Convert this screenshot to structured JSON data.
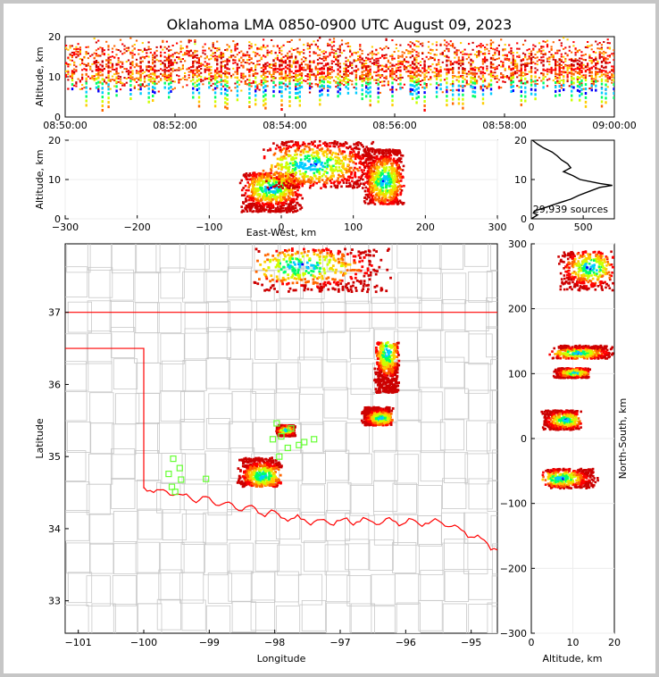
{
  "chart_data": [
    {
      "panel": "altitude-time",
      "type": "heatmap",
      "title": "Oklahoma LMA 0850-0900 UTC August 09, 2023",
      "ylabel": "Altitude, km",
      "xlabel": "",
      "x_ticks": [
        "08:50:00",
        "08:52:00",
        "08:54:00",
        "08:56:00",
        "08:58:00",
        "09:00:00"
      ],
      "xlim": [
        "08:50:00",
        "09:00:00"
      ],
      "ylim": [
        0,
        20
      ],
      "y_ticks": [
        "0",
        "10",
        "20"
      ],
      "band_altitude_km": [
        8,
        18
      ],
      "core_altitude_km": [
        2,
        12
      ]
    },
    {
      "panel": "altitude-eastwest",
      "type": "heatmap",
      "xlabel": "East-West, km",
      "ylabel": "Altitude, km",
      "xlim": [
        -300,
        300
      ],
      "ylim": [
        0,
        20
      ],
      "x_ticks": [
        "−300",
        "−200",
        "−100",
        "0",
        "100",
        "200",
        "300"
      ],
      "y_ticks": [
        "0",
        "10",
        "20"
      ],
      "clusters": [
        {
          "x": [
            -60,
            30
          ],
          "z": [
            2,
            12
          ],
          "core_x": -15,
          "core_z": 8
        },
        {
          "x": [
            -30,
            140
          ],
          "z": [
            8,
            20
          ],
          "core_x": 40,
          "core_z": 14
        },
        {
          "x": [
            110,
            170
          ],
          "z": [
            4,
            18
          ],
          "core_x": 142,
          "core_z": 10
        }
      ]
    },
    {
      "panel": "altitude-histogram",
      "type": "line",
      "xlim": [
        0,
        800
      ],
      "ylim": [
        0,
        20
      ],
      "x_ticks": [
        "0",
        "500"
      ],
      "y_ticks": [
        "0",
        "10",
        "20"
      ],
      "annotation": "29,939 sources",
      "altitude_km": [
        0,
        1,
        1.5,
        2,
        3,
        4,
        5,
        6,
        7,
        8,
        8.5,
        9,
        10,
        11,
        12,
        13,
        14,
        15,
        16,
        17,
        18,
        19,
        20
      ],
      "count": [
        0,
        60,
        20,
        30,
        150,
        260,
        380,
        460,
        560,
        660,
        780,
        660,
        470,
        400,
        310,
        380,
        350,
        290,
        250,
        200,
        120,
        60,
        10
      ]
    },
    {
      "panel": "plan-view",
      "type": "heatmap",
      "xlabel": "Longitude",
      "ylabel": "Latitude",
      "xlim": [
        -101.2,
        -94.6
      ],
      "ylim": [
        32.55,
        37.95
      ],
      "x_ticks": [
        "−101",
        "−100",
        "−99",
        "−98",
        "−97",
        "−96",
        "−95"
      ],
      "y_ticks": [
        "33",
        "34",
        "35",
        "36",
        "37"
      ],
      "clusters": [
        {
          "lon": [
            -98.4,
            -96.2
          ],
          "lat": [
            37.3,
            37.9
          ],
          "core_lon": -97.6,
          "core_lat": 37.65
        },
        {
          "lon": [
            -96.5,
            -96.1
          ],
          "lat": [
            35.9,
            36.6
          ],
          "core_lon": -96.3,
          "core_lat": 36.45
        },
        {
          "lon": [
            -96.7,
            -96.2
          ],
          "lat": [
            35.45,
            35.7
          ],
          "core_lon": -96.4,
          "core_lat": 35.55
        },
        {
          "lon": [
            -98.6,
            -97.9
          ],
          "lat": [
            34.6,
            35.0
          ],
          "core_lon": -98.2,
          "core_lat": 34.75
        },
        {
          "lon": [
            -98.0,
            -97.7
          ],
          "lat": [
            35.3,
            35.45
          ],
          "core_lon": -97.85,
          "core_lat": 35.38
        }
      ],
      "stations": [
        [
          -99.55,
          34.97
        ],
        [
          -99.45,
          34.84
        ],
        [
          -99.62,
          34.76
        ],
        [
          -99.43,
          34.68
        ],
        [
          -99.57,
          34.58
        ],
        [
          -99.52,
          34.51
        ],
        [
          -99.05,
          34.69
        ],
        [
          -98.03,
          35.24
        ],
        [
          -97.9,
          35.28
        ],
        [
          -97.8,
          35.12
        ],
        [
          -97.63,
          35.16
        ],
        [
          -97.55,
          35.2
        ],
        [
          -97.4,
          35.24
        ],
        [
          -97.93,
          35.0
        ],
        [
          -97.97,
          35.46
        ],
        [
          -97.75,
          35.39
        ]
      ]
    },
    {
      "panel": "northsouth-altitude",
      "type": "heatmap",
      "xlabel": "Altitude, km",
      "ylabel": "North-South, km",
      "xlim": [
        0,
        20
      ],
      "ylim": [
        -300,
        300
      ],
      "x_ticks": [
        "0",
        "10",
        "20"
      ],
      "y_ticks": [
        "−300",
        "−200",
        "−100",
        "0",
        "100",
        "200",
        "300"
      ],
      "clusters": [
        {
          "ns": [
            230,
            290
          ],
          "alt": [
            6,
            20
          ],
          "core_ns": 265,
          "core_alt": 14
        },
        {
          "ns": [
            125,
            145
          ],
          "alt": [
            4,
            20
          ],
          "core_ns": 133,
          "core_alt": 11
        },
        {
          "ns": [
            95,
            110
          ],
          "alt": [
            5,
            14
          ],
          "core_ns": 103,
          "core_alt": 10
        },
        {
          "ns": [
            15,
            45
          ],
          "alt": [
            2,
            12
          ],
          "core_ns": 30,
          "core_alt": 8
        },
        {
          "ns": [
            -75,
            -45
          ],
          "alt": [
            2,
            16
          ],
          "core_ns": -60,
          "core_alt": 7
        }
      ]
    }
  ],
  "colors": {
    "heat": [
      "#0000ff",
      "#00ccff",
      "#00ff66",
      "#ccff00",
      "#ffcc00",
      "#ff6600",
      "#ff0000",
      "#cc0000"
    ],
    "state_border": "#ff0000",
    "county": "#c8c8c8",
    "station": "#66ff33"
  }
}
